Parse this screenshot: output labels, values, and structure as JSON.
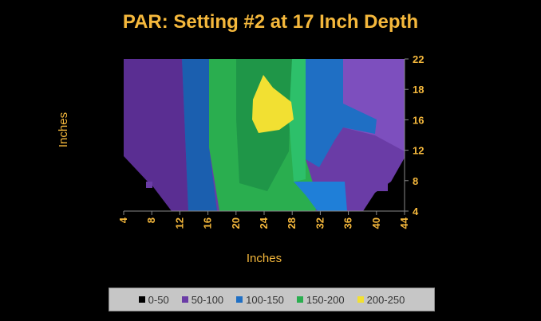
{
  "chart_data": {
    "type": "area",
    "subtype": "contour",
    "title": "PAR: Setting #2 at 17 Inch Depth",
    "xlabel": "Inches",
    "ylabel": "Inches",
    "x_ticks": [
      "4",
      "8",
      "12",
      "16",
      "20",
      "24",
      "28",
      "32",
      "36",
      "40",
      "44"
    ],
    "y_ticks": [
      "4",
      "8",
      "12",
      "16",
      "18",
      "22"
    ],
    "legend": [
      {
        "label": "0-50",
        "color": "#000000"
      },
      {
        "label": "50-100",
        "color": "#6A3CA6"
      },
      {
        "label": "100-150",
        "color": "#1F6FC4"
      },
      {
        "label": "150-200",
        "color": "#2AAE4F"
      },
      {
        "label": "200-250",
        "color": "#F2E032"
      }
    ],
    "legend_position": "bottom"
  }
}
